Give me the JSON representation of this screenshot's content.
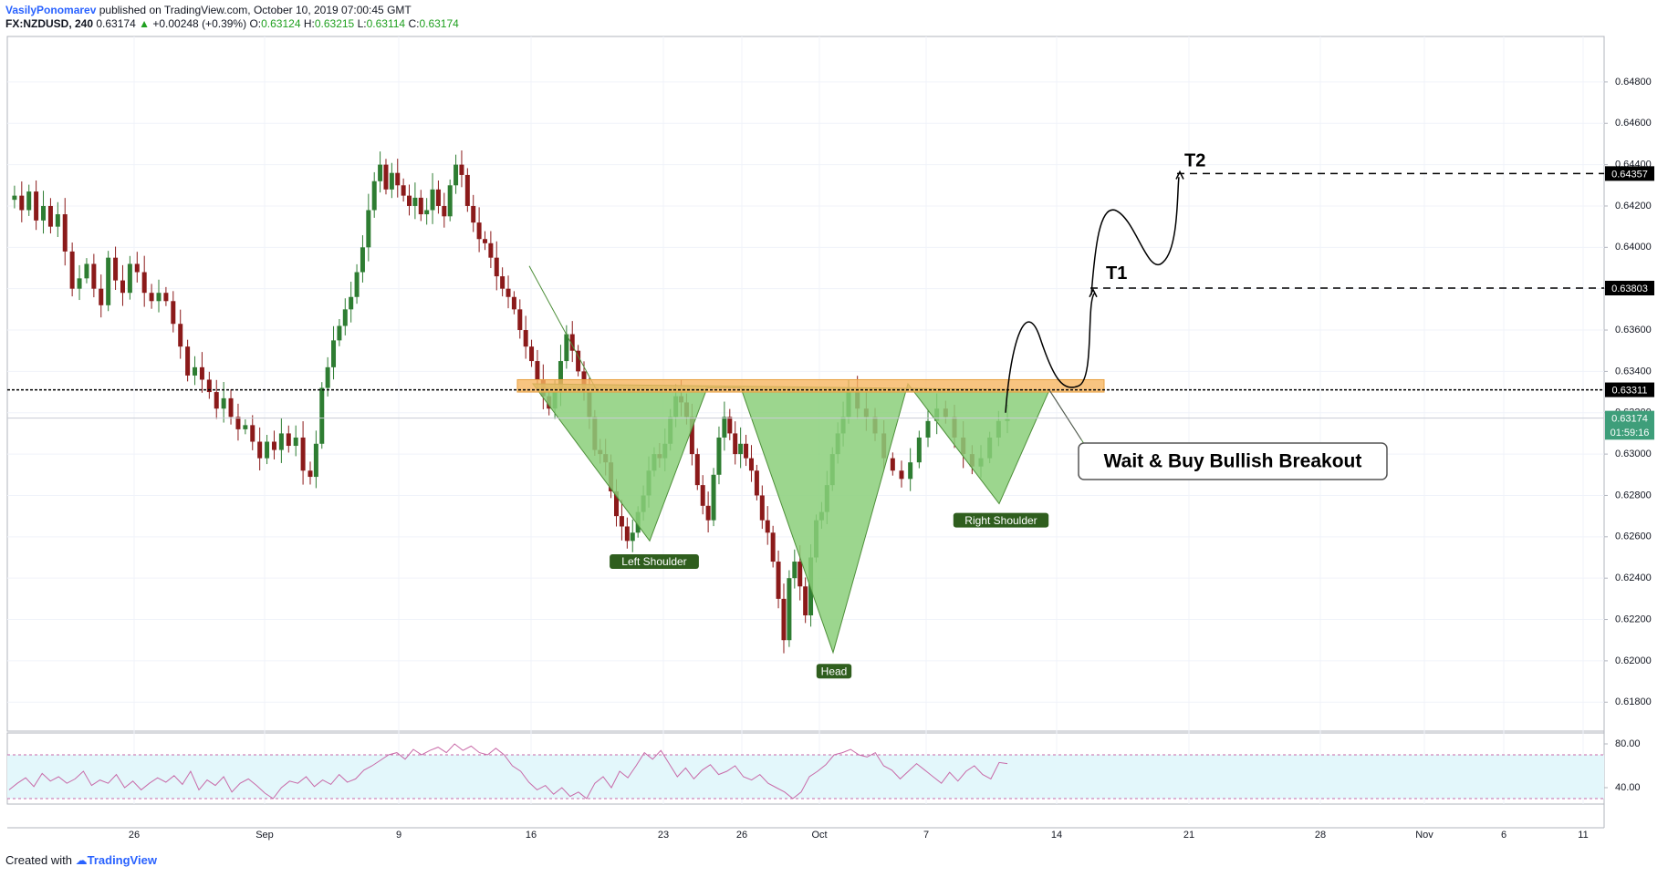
{
  "header": {
    "author": "VasilyPonomarev",
    "published_text": "published on TradingView.com, October 10, 2019 07:00:45 GMT",
    "symbol": "FX:NZDUSD, 240",
    "last": "0.63174",
    "change": "+0.00248 (+0.39%)",
    "o_label": "O:",
    "o": "0.63124",
    "h_label": "H:",
    "h": "0.63215",
    "l_label": "L:",
    "l": "0.63114",
    "c_label": "C:",
    "c": "0.63174"
  },
  "footer": {
    "created_with": "Created with",
    "brand": "TradingView"
  },
  "chart_data": {
    "type": "candlestick",
    "symbol": "NZDUSD",
    "timeframe": "240",
    "ylim": [
      0.6166,
      0.6502
    ],
    "y_ticks": [
      "0.64800",
      "0.64600",
      "0.64400",
      "0.64200",
      "0.64000",
      "0.63800",
      "0.63600",
      "0.63400",
      "0.63200",
      "0.63000",
      "0.62800",
      "0.62600",
      "0.62400",
      "0.62200",
      "0.62000",
      "0.61800"
    ],
    "x_ticks": [
      "26",
      "Sep",
      "9",
      "16",
      "23",
      "26",
      "Oct",
      "7",
      "14",
      "21",
      "28",
      "Nov",
      "6",
      "11"
    ],
    "close_path": [
      [
        0.6423,
        0.6425,
        0.6418,
        0.6427,
        0.6413,
        0.642,
        0.641,
        0.6416,
        0.6398,
        0.638,
        0.6385,
        0.6392,
        0.638,
        0.6372,
        0.6395,
        0.6384,
        0.6378,
        0.6392,
        0.6388,
        0.6378,
        0.6374,
        0.6378,
        0.6374,
        0.6363,
        0.6352,
        0.6338,
        0.6342,
        0.6336,
        0.633,
        0.6322,
        0.6327,
        0.6318,
        0.6312,
        0.6314,
        0.6306,
        0.6298,
        0.6306,
        0.6302,
        0.631,
        0.6304,
        0.6308,
        0.6292,
        0.6289
      ],
      [
        0.6289,
        0.6305,
        0.6332,
        0.6342,
        0.6355,
        0.6362,
        0.637,
        0.6376,
        0.6388,
        0.64,
        0.6418,
        0.6432,
        0.644,
        0.6428,
        0.6436,
        0.643,
        0.6425,
        0.642,
        0.6424,
        0.6416,
        0.6418,
        0.6428,
        0.642,
        0.6415,
        0.643,
        0.644,
        0.6435,
        0.642,
        0.6412,
        0.6404,
        0.6402,
        0.6395,
        0.6386,
        0.638,
        0.6376,
        0.637,
        0.636,
        0.6352,
        0.6345,
        0.6336,
        0.6328,
        0.6322,
        0.633,
        0.6345,
        0.6358,
        0.635,
        0.634,
        0.633
      ],
      [
        0.633,
        0.6318,
        0.6302,
        0.63,
        0.6296,
        0.6282,
        0.627,
        0.6265,
        0.6258,
        0.6262,
        0.6272,
        0.628,
        0.6292,
        0.63,
        0.6298,
        0.6305,
        0.6318,
        0.6328,
        0.6325,
        0.6318,
        0.63,
        0.6285,
        0.6275,
        0.6268,
        0.629,
        0.6308,
        0.6318,
        0.631,
        0.63,
        0.6305,
        0.6298,
        0.6292,
        0.628,
        0.6268,
        0.6262,
        0.6248,
        0.623,
        0.621,
        0.624,
        0.6248,
        0.6236,
        0.6222,
        0.625,
        0.6268,
        0.6272,
        0.6285,
        0.63,
        0.631,
        0.6318,
        0.6332
      ],
      [
        0.6332,
        0.6322,
        0.6318,
        0.631,
        0.6298,
        0.6292,
        0.6288,
        0.6296,
        0.6308,
        0.6316,
        0.6322,
        0.6318,
        0.6308,
        0.63,
        0.6294,
        0.6298,
        0.6308,
        0.6316,
        0.6317
      ]
    ],
    "last_price": 0.63174,
    "price_tags": [
      {
        "label": "0.64357",
        "value": 0.64357,
        "bg": "#000000",
        "fg": "#ffffff"
      },
      {
        "label": "0.63803",
        "value": 0.63803,
        "bg": "#000000",
        "fg": "#ffffff"
      },
      {
        "label": "0.63311",
        "value": 0.63311,
        "bg": "#000000",
        "fg": "#ffffff"
      },
      {
        "label": "0.63174",
        "value": 0.63174,
        "bg": "#3e9e7a",
        "fg": "#ffffff"
      },
      {
        "label": "01:59:16",
        "value": 0.63105,
        "bg": "#3e9e7a",
        "fg": "#ffffff"
      }
    ],
    "levels": [
      {
        "name": "T2",
        "value": 0.64357
      },
      {
        "name": "T1",
        "value": 0.63803
      },
      {
        "name": "Neckline",
        "value": 0.63311
      }
    ],
    "annotations": {
      "left_shoulder": "Left Shoulder",
      "head": "Head",
      "right_shoulder": "Right Shoulder",
      "callout": "Wait & Buy Bullish Breakout"
    },
    "rsi": {
      "y_ticks": [
        "80.00",
        "40.00"
      ],
      "upper": 70,
      "lower": 30,
      "ylim": [
        25,
        90
      ],
      "path": [
        38,
        44,
        49,
        41,
        53,
        46,
        50,
        44,
        48,
        55,
        42,
        47,
        44,
        52,
        40,
        46,
        38,
        44,
        49,
        45,
        51,
        43,
        55,
        38,
        47,
        42,
        50,
        36,
        44,
        48,
        42,
        35,
        30,
        40,
        46,
        44,
        50,
        41,
        47,
        43,
        52,
        45,
        48,
        56,
        60,
        65,
        70,
        72,
        66,
        75,
        70,
        74,
        77,
        72,
        80,
        74,
        78,
        72,
        70,
        76,
        70,
        60,
        55,
        45,
        38,
        42,
        34,
        40,
        32,
        36,
        30,
        44,
        50,
        40,
        55,
        49,
        60,
        72,
        66,
        74,
        62,
        50,
        58,
        48,
        56,
        61,
        52,
        55,
        60,
        50,
        47,
        52,
        44,
        40,
        36,
        30,
        36,
        50,
        55,
        61,
        70,
        72,
        75,
        70,
        68,
        72,
        60,
        56,
        48,
        55,
        62,
        56,
        50,
        44,
        54,
        46,
        55,
        60,
        52,
        48,
        63,
        62
      ]
    },
    "colors": {
      "up": "#26a69a",
      "down": "#8b1a1a",
      "up_body": "#2e7d32",
      "pattern_fill": "#8bcf7a",
      "neckline_band": "#f6b560",
      "rsi": "#c86aa8",
      "rsi_bg": "#e3f7fb"
    }
  }
}
